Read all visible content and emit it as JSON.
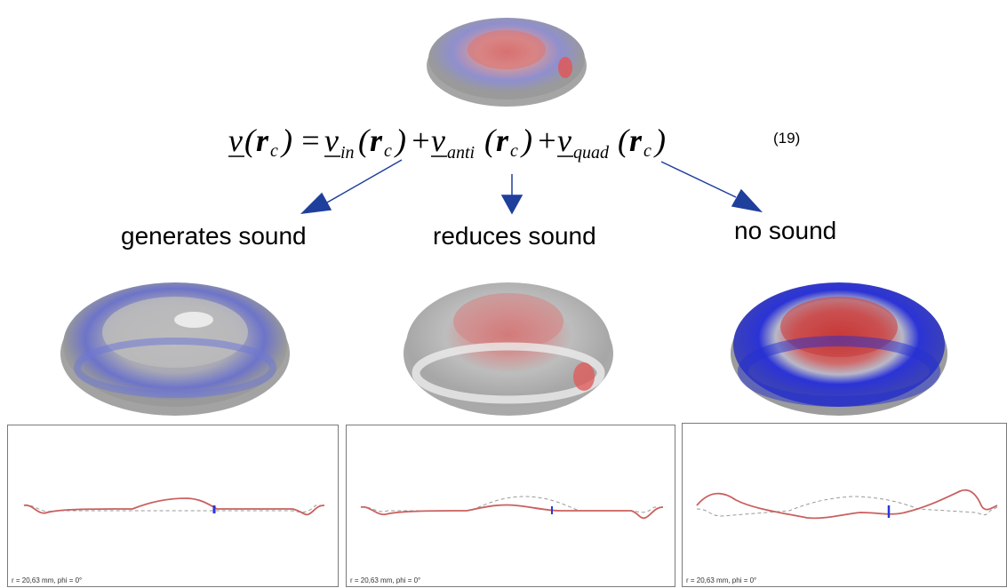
{
  "equation": {
    "lhs": "v(rc)",
    "rhs_terms": [
      "v_in(rc)",
      "v_anti(rc)",
      "v_quad(rc)"
    ],
    "number": "(19)"
  },
  "labels": {
    "generates": "generates sound",
    "reduces": "reduces sound",
    "no_sound": "no sound"
  },
  "panels": [
    {
      "caption": "r = 20,63 mm, phi = 0°"
    },
    {
      "caption": "r = 20,63 mm, phi = 0°"
    },
    {
      "caption": "r = 20,63 mm, phi = 0°"
    }
  ],
  "colors": {
    "arrow": "#1f3f9c",
    "profile": "#c9605f",
    "reference": "#9a9a9a",
    "positive": "#d83a3a",
    "negative": "#2a36d8"
  }
}
